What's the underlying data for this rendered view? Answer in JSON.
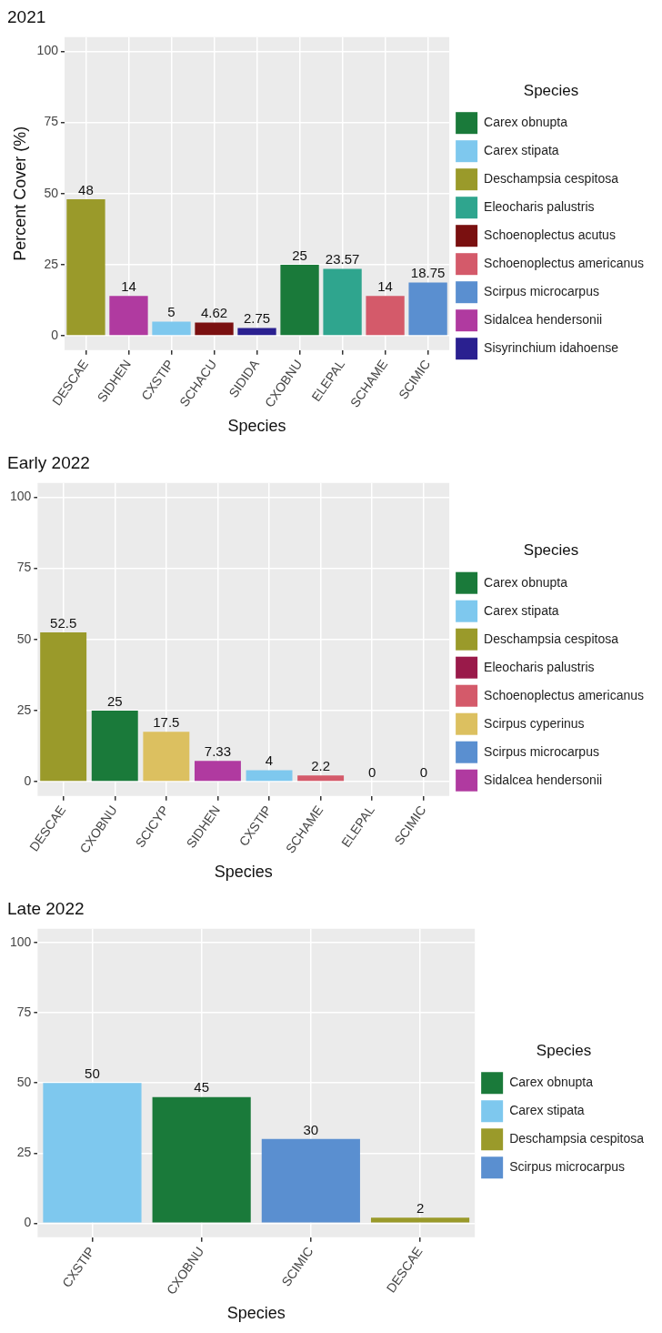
{
  "chart_data": [
    {
      "type": "bar",
      "title": "2021",
      "xlabel": "Species",
      "ylabel": "Percent Cover (%)",
      "legend_title": "Species",
      "categories": [
        "DESCAE",
        "SIDHEN",
        "CXSTIP",
        "SCHACU",
        "SIDIDA",
        "CXOBNU",
        "ELEPAL",
        "SCHAME",
        "SCIMIC"
      ],
      "series": [
        {
          "name": "Carex obnupta",
          "color": "#1a7a3a",
          "values": [
            null,
            null,
            null,
            null,
            null,
            25,
            null,
            null,
            null
          ]
        },
        {
          "name": "Carex stipata",
          "color": "#7ec8ee",
          "values": [
            null,
            null,
            5,
            null,
            null,
            null,
            null,
            null,
            null
          ]
        },
        {
          "name": "Deschampsia cespitosa",
          "color": "#9a9a2a",
          "values": [
            48,
            null,
            null,
            null,
            null,
            null,
            null,
            null,
            null
          ]
        },
        {
          "name": "Eleocharis palustris",
          "color": "#2fa58e",
          "values": [
            null,
            null,
            null,
            null,
            null,
            null,
            23.57,
            null,
            null
          ]
        },
        {
          "name": "Schoenoplectus acutus",
          "color": "#7a1010",
          "values": [
            null,
            null,
            null,
            4.62,
            null,
            null,
            null,
            null,
            null
          ]
        },
        {
          "name": "Schoenoplectus americanus",
          "color": "#d45a6a",
          "values": [
            null,
            null,
            null,
            null,
            null,
            null,
            null,
            14,
            null
          ]
        },
        {
          "name": "Scirpus microcarpus",
          "color": "#5a8fd0",
          "values": [
            null,
            null,
            null,
            null,
            null,
            null,
            null,
            null,
            18.75
          ]
        },
        {
          "name": "Sidalcea hendersonii",
          "color": "#b03aa0",
          "values": [
            null,
            14,
            null,
            null,
            null,
            null,
            null,
            null,
            null
          ]
        },
        {
          "name": "Sisyrinchium idahoense",
          "color": "#2a2090",
          "values": [
            null,
            null,
            null,
            null,
            2.75,
            null,
            null,
            null,
            null
          ]
        }
      ],
      "ylim": [
        -5,
        105
      ],
      "yticks": [
        0,
        25,
        50,
        75,
        100
      ],
      "grid": true,
      "legend": "right",
      "data_labels": true
    },
    {
      "type": "bar",
      "title": "Early 2022",
      "xlabel": "Species",
      "legend_title": "Species",
      "categories": [
        "DESCAE",
        "CXOBNU",
        "SCICYP",
        "SIDHEN",
        "CXSTIP",
        "SCHAME",
        "ELEPAL",
        "SCIMIC"
      ],
      "series": [
        {
          "name": "Carex obnupta",
          "color": "#1a7a3a",
          "values": [
            null,
            25,
            null,
            null,
            null,
            null,
            null,
            null
          ]
        },
        {
          "name": "Carex stipata",
          "color": "#7ec8ee",
          "values": [
            null,
            null,
            null,
            null,
            4,
            null,
            null,
            null
          ]
        },
        {
          "name": "Deschampsia cespitosa",
          "color": "#9a9a2a",
          "values": [
            52.5,
            null,
            null,
            null,
            null,
            null,
            null,
            null
          ]
        },
        {
          "name": "Eleocharis palustris",
          "color": "#9a1a4a",
          "values": [
            null,
            null,
            null,
            null,
            null,
            null,
            0,
            null
          ]
        },
        {
          "name": "Schoenoplectus americanus",
          "color": "#d45a6a",
          "values": [
            null,
            null,
            null,
            null,
            null,
            2.2,
            null,
            null
          ]
        },
        {
          "name": "Scirpus cyperinus",
          "color": "#dcc060",
          "values": [
            null,
            null,
            17.5,
            null,
            null,
            null,
            null,
            null
          ]
        },
        {
          "name": "Scirpus microcarpus",
          "color": "#5a8fd0",
          "values": [
            null,
            null,
            null,
            null,
            null,
            null,
            null,
            0
          ]
        },
        {
          "name": "Sidalcea hendersonii",
          "color": "#b03aa0",
          "values": [
            null,
            null,
            null,
            7.33,
            null,
            null,
            null,
            null
          ]
        }
      ],
      "ylim": [
        -5,
        105
      ],
      "yticks": [
        0,
        25,
        50,
        75,
        100
      ],
      "grid": true,
      "legend": "right",
      "data_labels": true
    },
    {
      "type": "bar",
      "title": "Late 2022",
      "xlabel": "Species",
      "legend_title": "Species",
      "categories": [
        "CXSTIP",
        "CXOBNU",
        "SCIMIC",
        "DESCAE"
      ],
      "series": [
        {
          "name": "Carex obnupta",
          "color": "#1a7a3a",
          "values": [
            null,
            45,
            null,
            null
          ]
        },
        {
          "name": "Carex stipata",
          "color": "#7ec8ee",
          "values": [
            50,
            null,
            null,
            null
          ]
        },
        {
          "name": "Deschampsia cespitosa",
          "color": "#9a9a2a",
          "values": [
            null,
            null,
            null,
            2
          ]
        },
        {
          "name": "Scirpus microcarpus",
          "color": "#5a8fd0",
          "values": [
            null,
            null,
            30,
            null
          ]
        }
      ],
      "ylim": [
        -5,
        105
      ],
      "yticks": [
        0,
        25,
        50,
        75,
        100
      ],
      "grid": true,
      "legend": "right",
      "data_labels": true
    }
  ]
}
